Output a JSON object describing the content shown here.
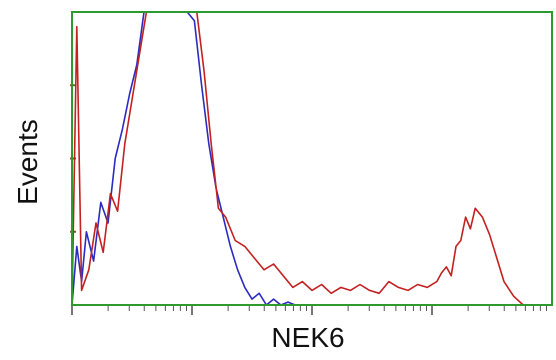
{
  "chart_data": {
    "type": "line",
    "xlabel": "NEK6",
    "ylabel": "Events",
    "x_scale": "log",
    "xlim": [
      0,
      1
    ],
    "ylim": [
      0,
      1
    ],
    "grid": false,
    "legend": "none",
    "colors": {
      "frame": "#2e9a2e",
      "blue_series": "#2b2bbf",
      "red_series": "#c42020"
    },
    "series": [
      {
        "color": "#2b2bbf",
        "x": [
          0.0,
          0.01,
          0.02,
          0.03,
          0.045,
          0.06,
          0.075,
          0.09,
          0.105,
          0.12,
          0.135,
          0.15,
          0.165,
          0.18,
          0.195,
          0.21,
          0.225,
          0.24,
          0.255,
          0.27,
          0.285,
          0.3,
          0.315,
          0.33,
          0.345,
          0.36,
          0.375,
          0.39,
          0.405,
          0.42,
          0.435,
          0.45,
          0.465,
          0.48
        ],
        "y": [
          0.0,
          0.2,
          0.08,
          0.25,
          0.15,
          0.35,
          0.28,
          0.5,
          0.6,
          0.72,
          0.82,
          1.0,
          1.0,
          1.0,
          1.0,
          1.0,
          1.0,
          1.0,
          0.97,
          0.75,
          0.55,
          0.4,
          0.3,
          0.2,
          0.12,
          0.06,
          0.02,
          0.04,
          0.0,
          0.02,
          0.0,
          0.01,
          0.0,
          0.0
        ]
      },
      {
        "color": "#c42020",
        "x": [
          0.0,
          0.01,
          0.02,
          0.035,
          0.05,
          0.065,
          0.08,
          0.095,
          0.11,
          0.125,
          0.14,
          0.155,
          0.17,
          0.185,
          0.2,
          0.215,
          0.23,
          0.245,
          0.26,
          0.275,
          0.29,
          0.305,
          0.32,
          0.34,
          0.36,
          0.38,
          0.4,
          0.42,
          0.44,
          0.46,
          0.48,
          0.5,
          0.52,
          0.54,
          0.56,
          0.58,
          0.6,
          0.62,
          0.64,
          0.66,
          0.68,
          0.7,
          0.72,
          0.74,
          0.76,
          0.77,
          0.78,
          0.79,
          0.8,
          0.81,
          0.82,
          0.83,
          0.84,
          0.855,
          0.87,
          0.885,
          0.9,
          0.92,
          0.94
        ],
        "y": [
          0.0,
          0.95,
          0.05,
          0.12,
          0.28,
          0.18,
          0.38,
          0.32,
          0.55,
          0.7,
          0.85,
          1.0,
          1.0,
          1.0,
          1.0,
          1.0,
          1.0,
          1.0,
          1.0,
          0.8,
          0.55,
          0.33,
          0.3,
          0.22,
          0.2,
          0.16,
          0.12,
          0.14,
          0.1,
          0.06,
          0.08,
          0.05,
          0.07,
          0.04,
          0.06,
          0.05,
          0.07,
          0.05,
          0.04,
          0.08,
          0.06,
          0.05,
          0.07,
          0.06,
          0.08,
          0.11,
          0.13,
          0.1,
          0.2,
          0.22,
          0.3,
          0.26,
          0.33,
          0.3,
          0.24,
          0.16,
          0.08,
          0.03,
          0.0
        ]
      }
    ]
  }
}
